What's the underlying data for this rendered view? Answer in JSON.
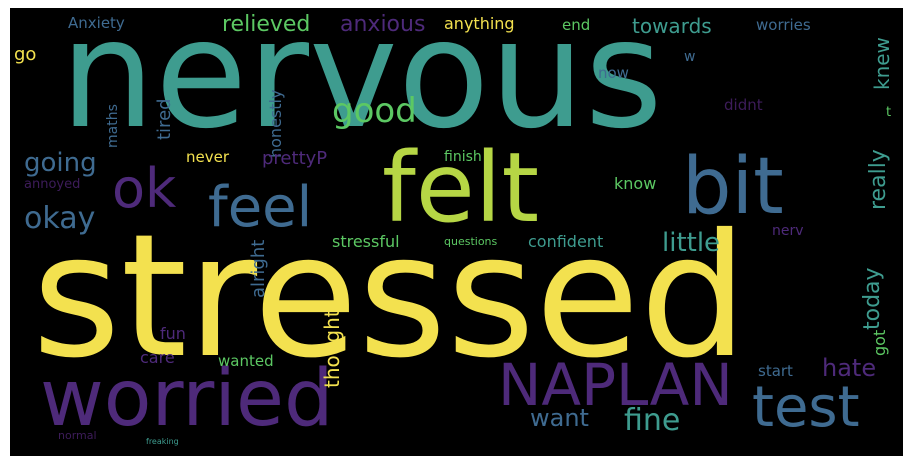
{
  "palette": {
    "yellow": "#f3e14f",
    "teal": "#3e9c8f",
    "green": "#8fce4b",
    "slate": "#3f6b91",
    "purple": "#4e2a7a",
    "dark_purple": "#3d1c5a"
  },
  "words": {
    "nervous": "nervous",
    "stressed": "stressed",
    "felt": "felt",
    "bit": "bit",
    "worried": "worried",
    "naplan": "NAPLAN",
    "test": "test",
    "feel": "feel",
    "ok": "ok",
    "good": "good",
    "okay": "okay",
    "going": "going",
    "fine": "fine",
    "want": "want",
    "little": "little",
    "today": "today",
    "really": "really",
    "knew": "knew",
    "hate": "hate",
    "anxiety": "Anxiety",
    "relieved": "relieved",
    "anxious": "anxious",
    "anything": "anything",
    "end": "end",
    "towards": "towards",
    "worries": "worries",
    "go": "go",
    "now": "now",
    "w": "w",
    "tired": "tired",
    "maths": "maths",
    "honestly": "honestly",
    "didnt": "didnt",
    "t": "t",
    "never": "never",
    "pretty": "prettyP",
    "finish": "finish",
    "know": "know",
    "annoyed": "annoyed",
    "alright": "alright",
    "stressful": "stressful",
    "confident": "confident",
    "nerv": "nerv",
    "got": "got",
    "thought": "thought",
    "fun": "fun",
    "care": "care",
    "wanted": "wanted",
    "start": "start",
    "questions": "questions",
    "normal": "normal",
    "freaking": "freaking"
  }
}
